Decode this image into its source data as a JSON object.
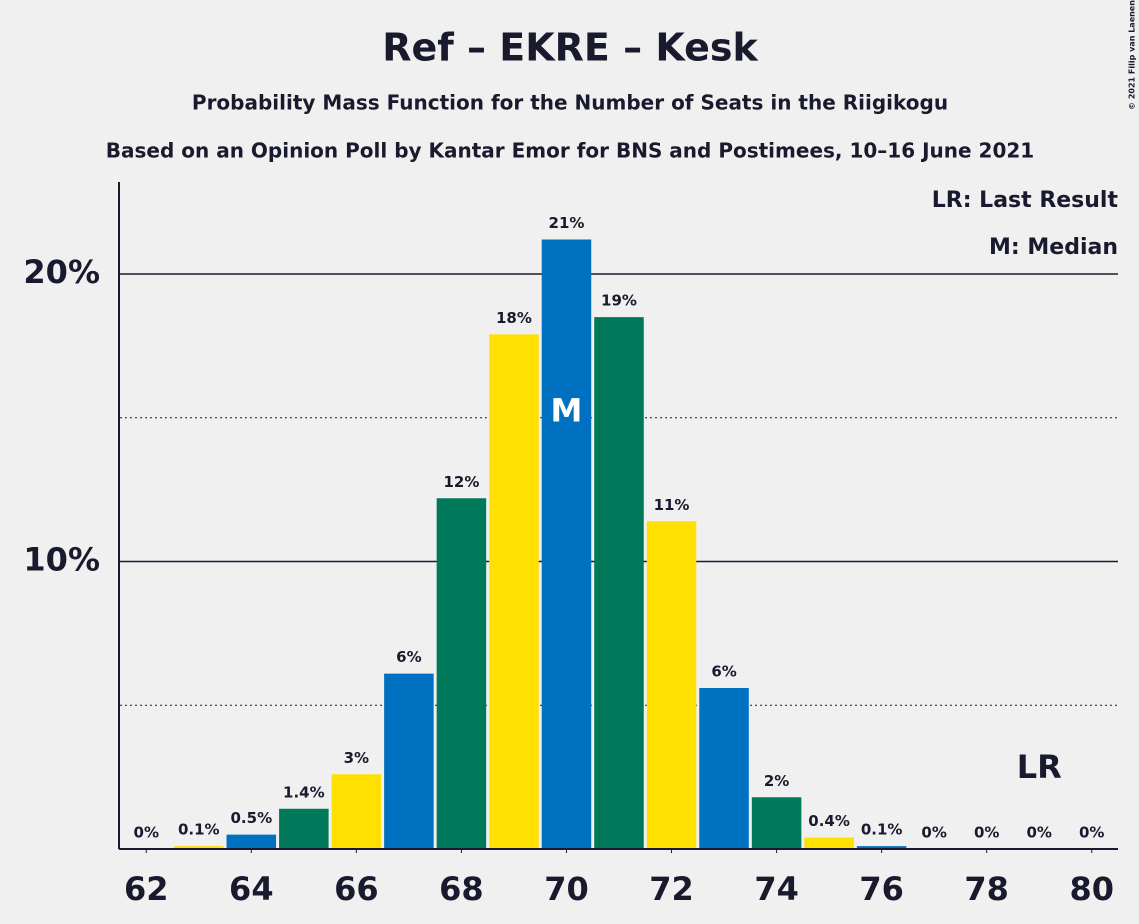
{
  "chart_data": {
    "type": "bar",
    "title": "Ref – EKRE – Kesk",
    "subtitle": "Probability Mass Function for the Number of Seats in the Riigikogu",
    "subtitle2": "Based on an Opinion Poll by Kantar Emor for BNS and Postimees, 10–16 June 2021",
    "copyright": "© 2021 Filip van Laenen",
    "legend": [
      "LR: Last Result",
      "M: Median"
    ],
    "x": [
      62,
      63,
      64,
      65,
      66,
      67,
      68,
      69,
      70,
      71,
      72,
      73,
      74,
      75,
      76,
      77,
      78,
      79,
      80
    ],
    "values": [
      0,
      0.1,
      0.5,
      1.4,
      2.6,
      6.1,
      12.2,
      17.9,
      21.2,
      18.5,
      11.4,
      5.6,
      1.8,
      0.4,
      0.1,
      0,
      0,
      0,
      0
    ],
    "value_labels": [
      "0%",
      "0.1%",
      "0.5%",
      "1.4%",
      "3%",
      "6%",
      "12%",
      "18%",
      "21%",
      "19%",
      "11%",
      "6%",
      "2%",
      "0.4%",
      "0.1%",
      "0%",
      "0%",
      "0%",
      "0%"
    ],
    "colors": [
      "#00785a",
      "#ffe000",
      "#0070c0",
      "#00785a",
      "#ffe000",
      "#0070c0",
      "#00785a",
      "#ffe000",
      "#0070c0",
      "#00785a",
      "#ffe000",
      "#0070c0",
      "#00785a",
      "#ffe000",
      "#0070c0",
      "#00785a",
      "#ffe000",
      "#0070c0",
      "#00785a"
    ],
    "xlim": [
      61.5,
      80.5
    ],
    "xticks": [
      62,
      64,
      66,
      68,
      70,
      72,
      74,
      76,
      78,
      80
    ],
    "ylim": [
      0,
      23.2
    ],
    "yticks": [
      {
        "value": 10,
        "label": "10%"
      },
      {
        "value": 20,
        "label": "20%"
      }
    ],
    "minor_yticks": [
      5,
      15
    ],
    "median": {
      "x": 70,
      "label": "M"
    },
    "last_result": {
      "x": 79,
      "label": "LR"
    }
  }
}
